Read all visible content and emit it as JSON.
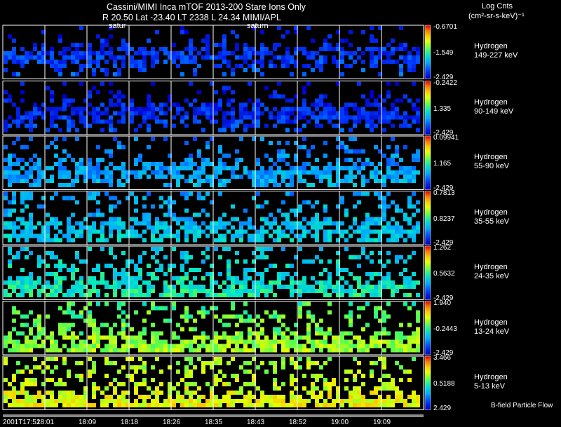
{
  "header": {
    "title": "Cassini/MIMI Inca mTOF  2013-200   Stare   Ions Only",
    "info": "R      20.50  Lat -23.40  LT 2338  L        24.34   MIMI/APL",
    "units_line1": "Log Cnts",
    "units_line2": "(cm²-sr-s-keV)⁻¹"
  },
  "saturn_labels": [
    "satur",
    "saturn"
  ],
  "footnote": "B-field Particle Flow",
  "colors": {
    "background": "#000000",
    "grid": "#ffffff"
  },
  "chart_data": {
    "type": "heatmap",
    "x_tick_labels": [
      "2001T17:52",
      "18:01",
      "18:09",
      "18:18",
      "18:26",
      "18:35",
      "18:43",
      "18:52",
      "19:00",
      "19:09"
    ],
    "colormap": "rainbow (blue low → red high)",
    "panels": [
      {
        "species": "Hydrogen",
        "energy": "149-227 keV",
        "cb_max": "-0.6701",
        "cb_mid": "-1.549",
        "cb_min": "-2.429",
        "level": 0.12
      },
      {
        "species": "Hydrogen",
        "energy": "90-149 keV",
        "cb_max": "-0.2422",
        "cb_mid": "1.335",
        "cb_min": "-2.429",
        "level": 0.1
      },
      {
        "species": "Hydrogen",
        "energy": "55-90 keV",
        "cb_max": "0.09941",
        "cb_mid": "1.165",
        "cb_min": "-2.429",
        "level": 0.28
      },
      {
        "species": "Hydrogen",
        "energy": "35-55 keV",
        "cb_max": "0.7813",
        "cb_mid": "0.8237",
        "cb_min": "-2.429",
        "level": 0.34
      },
      {
        "species": "Hydrogen",
        "energy": "24-35 keV",
        "cb_max": "1.262",
        "cb_mid": "0.5632",
        "cb_min": "-2.429",
        "level": 0.42
      },
      {
        "species": "Hydrogen",
        "energy": "13-24 keV",
        "cb_max": "1.940",
        "cb_mid": "-0.2443",
        "cb_min": "-2.429",
        "level": 0.58
      },
      {
        "species": "Hydrogen",
        "energy": "5-13 keV",
        "cb_max": "3.466",
        "cb_mid": "0.5188",
        "cb_min": "2.429",
        "level": 0.68
      }
    ]
  }
}
